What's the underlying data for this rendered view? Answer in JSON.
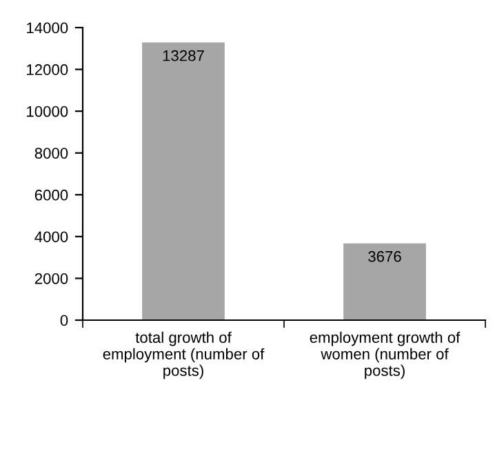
{
  "chart_data": {
    "type": "bar",
    "categories": [
      "total growth of employment (number of posts)",
      "employment growth of women (number of posts)"
    ],
    "values": [
      13287,
      3676
    ],
    "color": "#a6a6a6",
    "ylim": [
      0,
      14000
    ],
    "yticks": [
      0,
      2000,
      4000,
      6000,
      8000,
      10000,
      12000,
      14000
    ],
    "data_labels": true,
    "grid": false
  }
}
